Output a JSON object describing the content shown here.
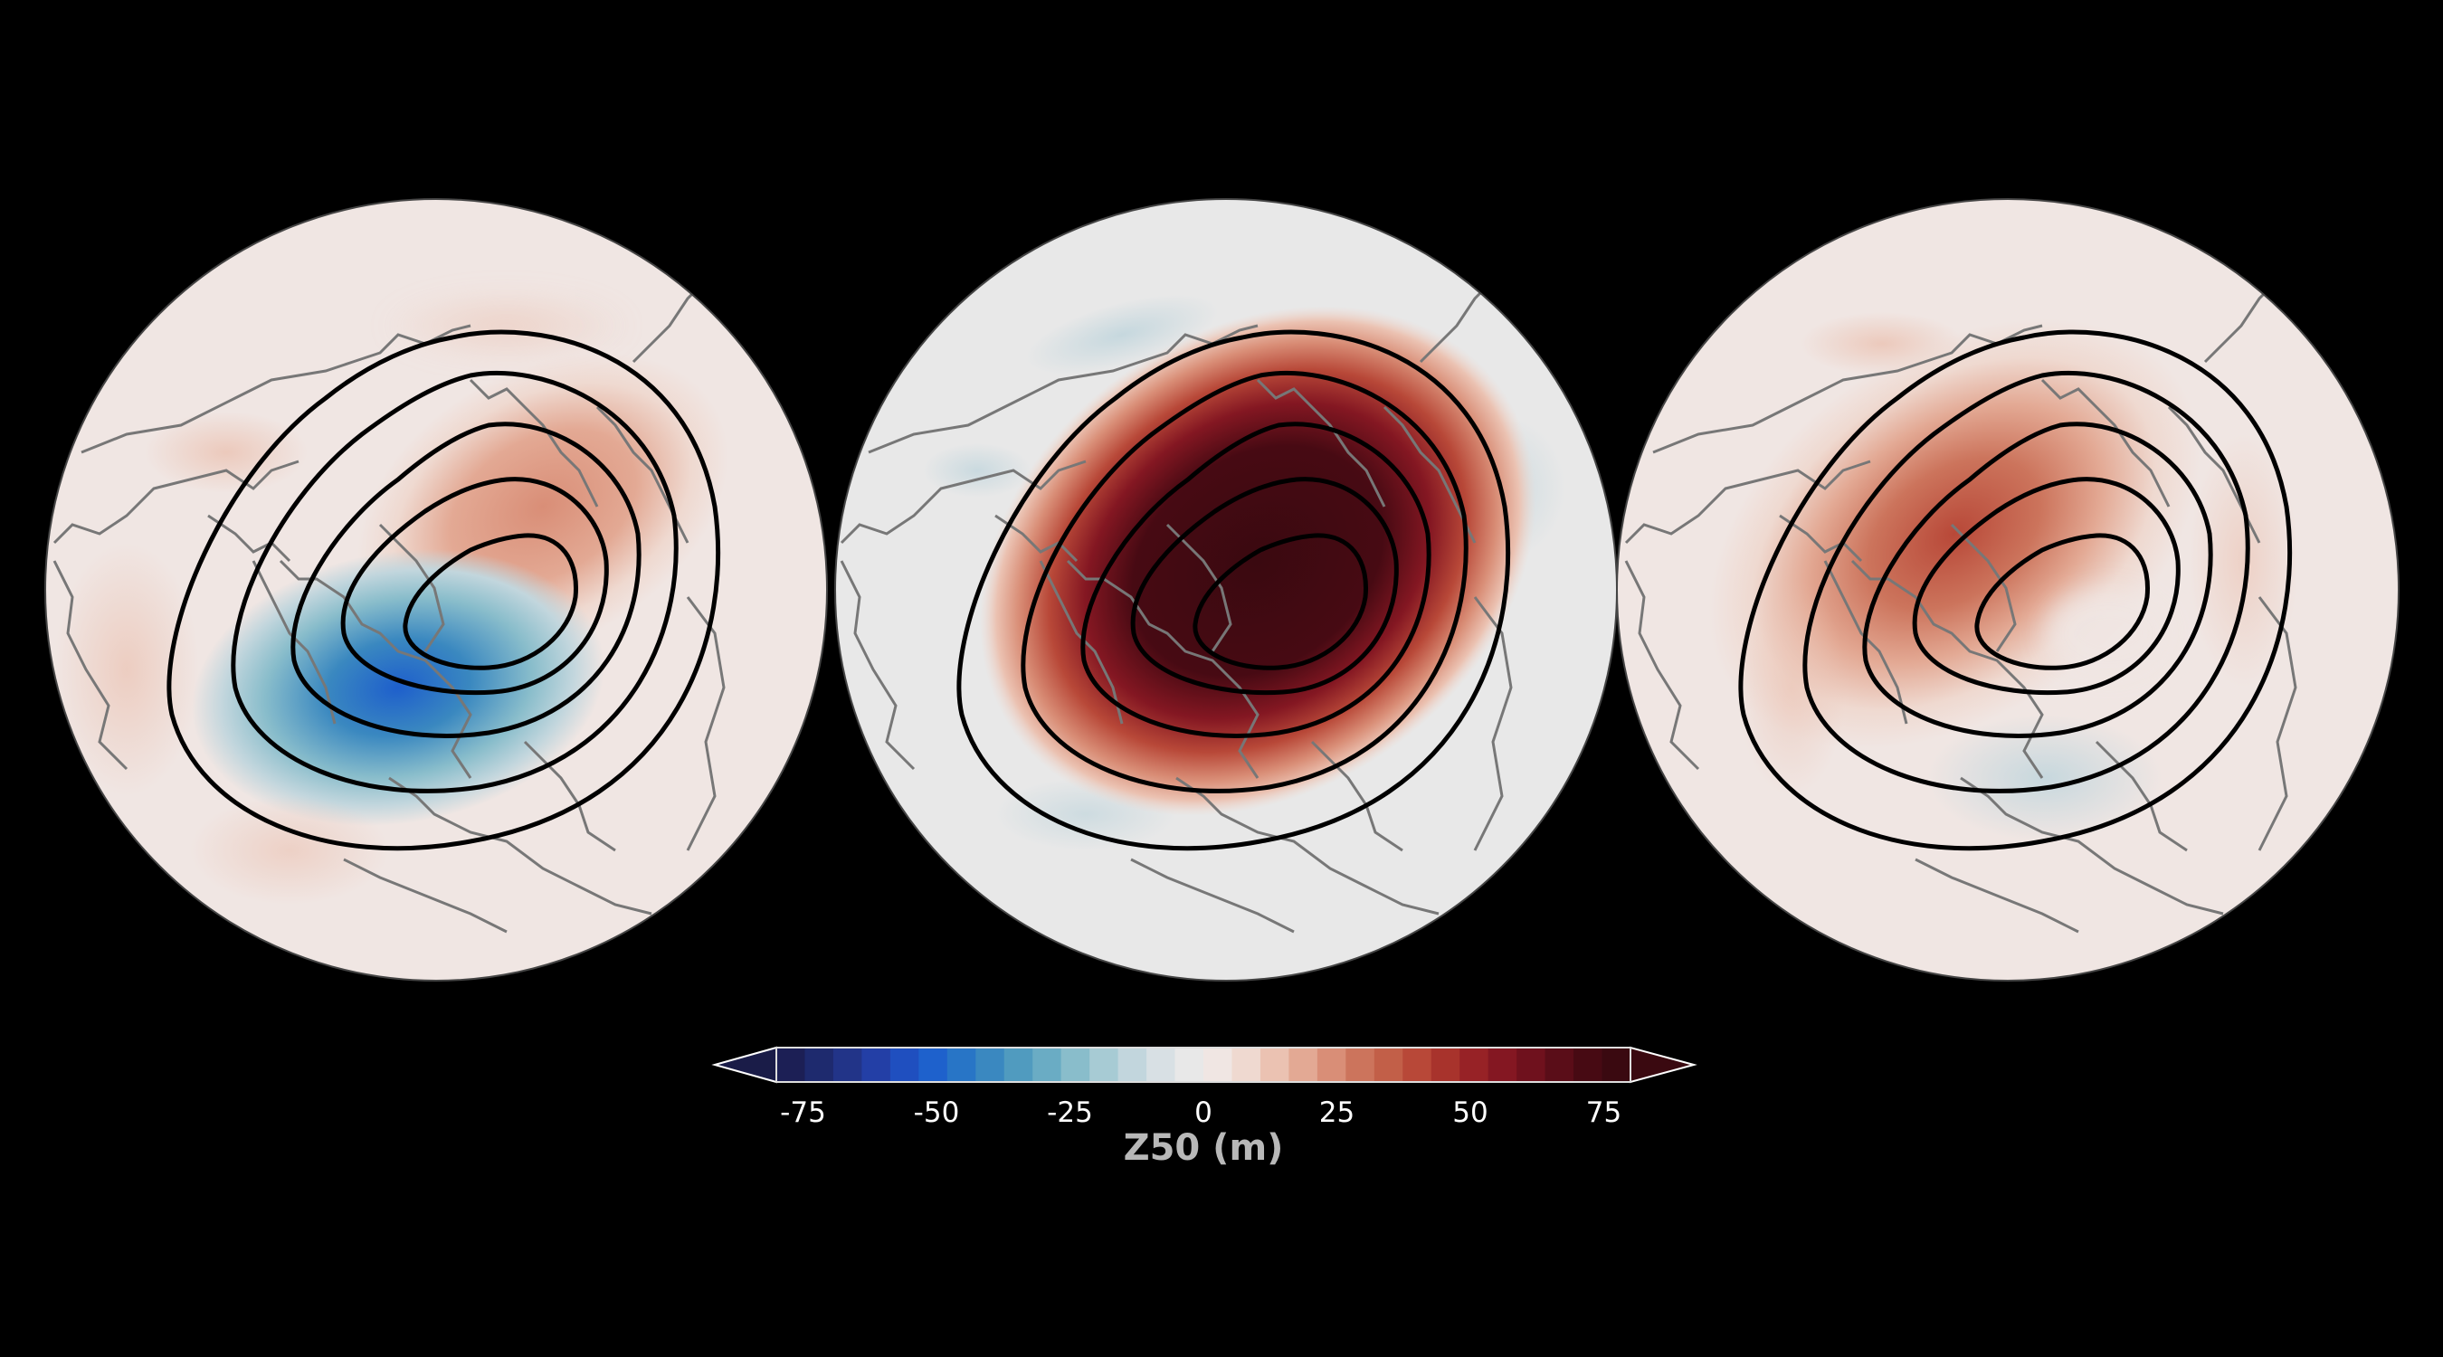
{
  "figure": {
    "background": "#000000",
    "panels": [
      {
        "name": "panel-1",
        "anomaly": "negative",
        "strength": 70
      },
      {
        "name": "panel-2",
        "anomaly": "positive",
        "strength": 95
      },
      {
        "name": "panel-3",
        "anomaly": "positive",
        "strength": 45
      }
    ],
    "contour_color": "#000000",
    "coastline_color": "#777777"
  },
  "colorbar": {
    "label": "Z50 (m)",
    "ticks": [
      "-75",
      "-50",
      "-25",
      "0",
      "25",
      "50",
      "75"
    ],
    "tick_values": [
      -75,
      -50,
      -25,
      0,
      25,
      50,
      75
    ],
    "range": [
      -80,
      80
    ],
    "step": 5,
    "extend": "both",
    "colors": [
      "#1c1f55",
      "#1e2a6e",
      "#223488",
      "#233fa6",
      "#1f4fbf",
      "#1e61cc",
      "#2875c6",
      "#3a88c0",
      "#509bbf",
      "#6aacc4",
      "#89bdcb",
      "#a7cbd4",
      "#c2d6dd",
      "#d8e0e4",
      "#e8e8e8",
      "#f0e6e3",
      "#efd9d0",
      "#ebc2b2",
      "#e3a994",
      "#d98e77",
      "#cc745c",
      "#c25f48",
      "#b84838",
      "#a8332c",
      "#972226",
      "#841722",
      "#6f111d",
      "#5a0d18",
      "#470a13",
      "#3a0910"
    ]
  }
}
